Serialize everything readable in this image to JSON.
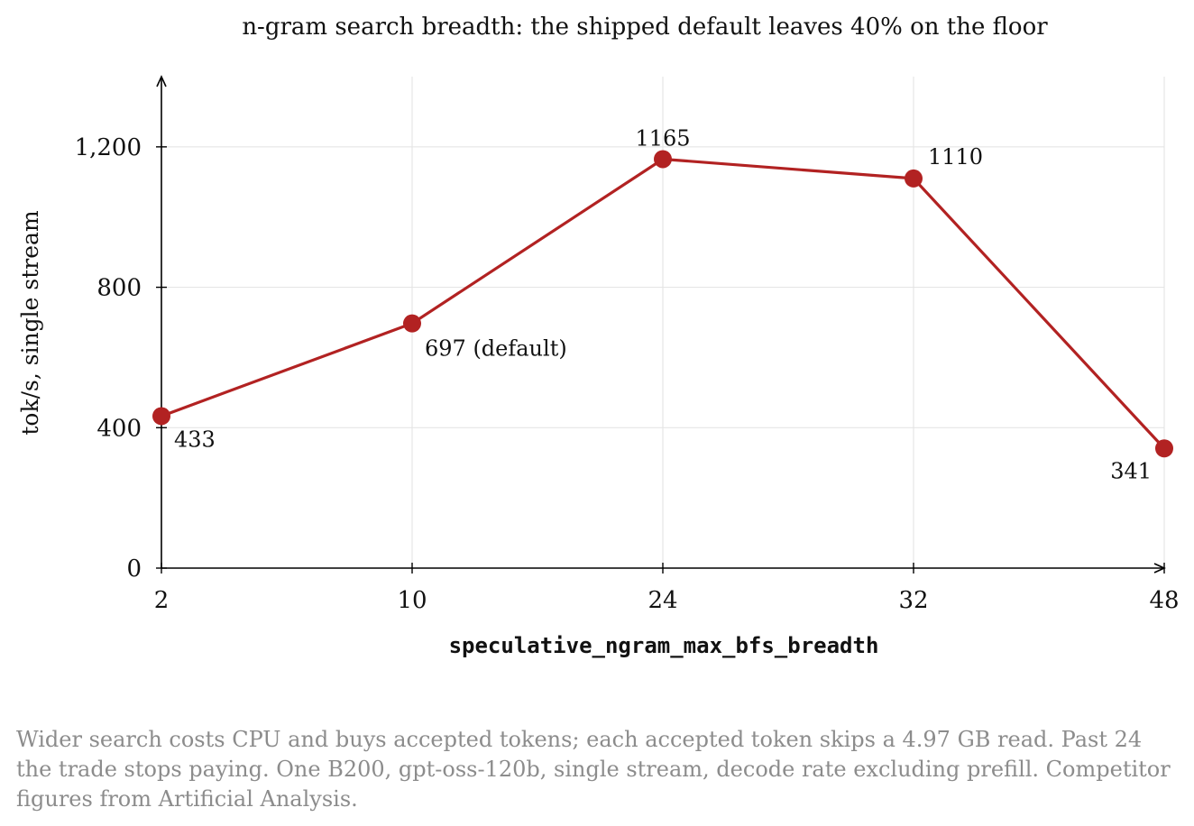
{
  "chart_data": {
    "type": "line",
    "title": "n-gram search breadth: the shipped default leaves 40% on the floor",
    "xlabel": "speculative_ngram_max_bfs_breadth",
    "ylabel": "tok/s, single stream",
    "categories": [
      "2",
      "10",
      "24",
      "32",
      "48"
    ],
    "series": [
      {
        "values": [
          433,
          697,
          1165,
          1110,
          341
        ],
        "color": "#b22222"
      }
    ],
    "data_labels": [
      "433",
      "697 (default)",
      "1165",
      "1110",
      "341"
    ],
    "highlight_index": 2,
    "highlight_color": "#b22222",
    "ylim": [
      0,
      1400
    ],
    "yticks": [
      0,
      400,
      800,
      1200
    ],
    "ytick_labels": [
      "0",
      "400",
      "800",
      "1,200"
    ],
    "grid": true
  },
  "caption": "Wider search costs CPU and buys accepted tokens; each accepted token skips a 4.97 GB read. Past 24 the trade stops paying. One B200, gpt-oss-120b, single stream, decode rate excluding prefill. Competitor figures from Artificial Analysis."
}
